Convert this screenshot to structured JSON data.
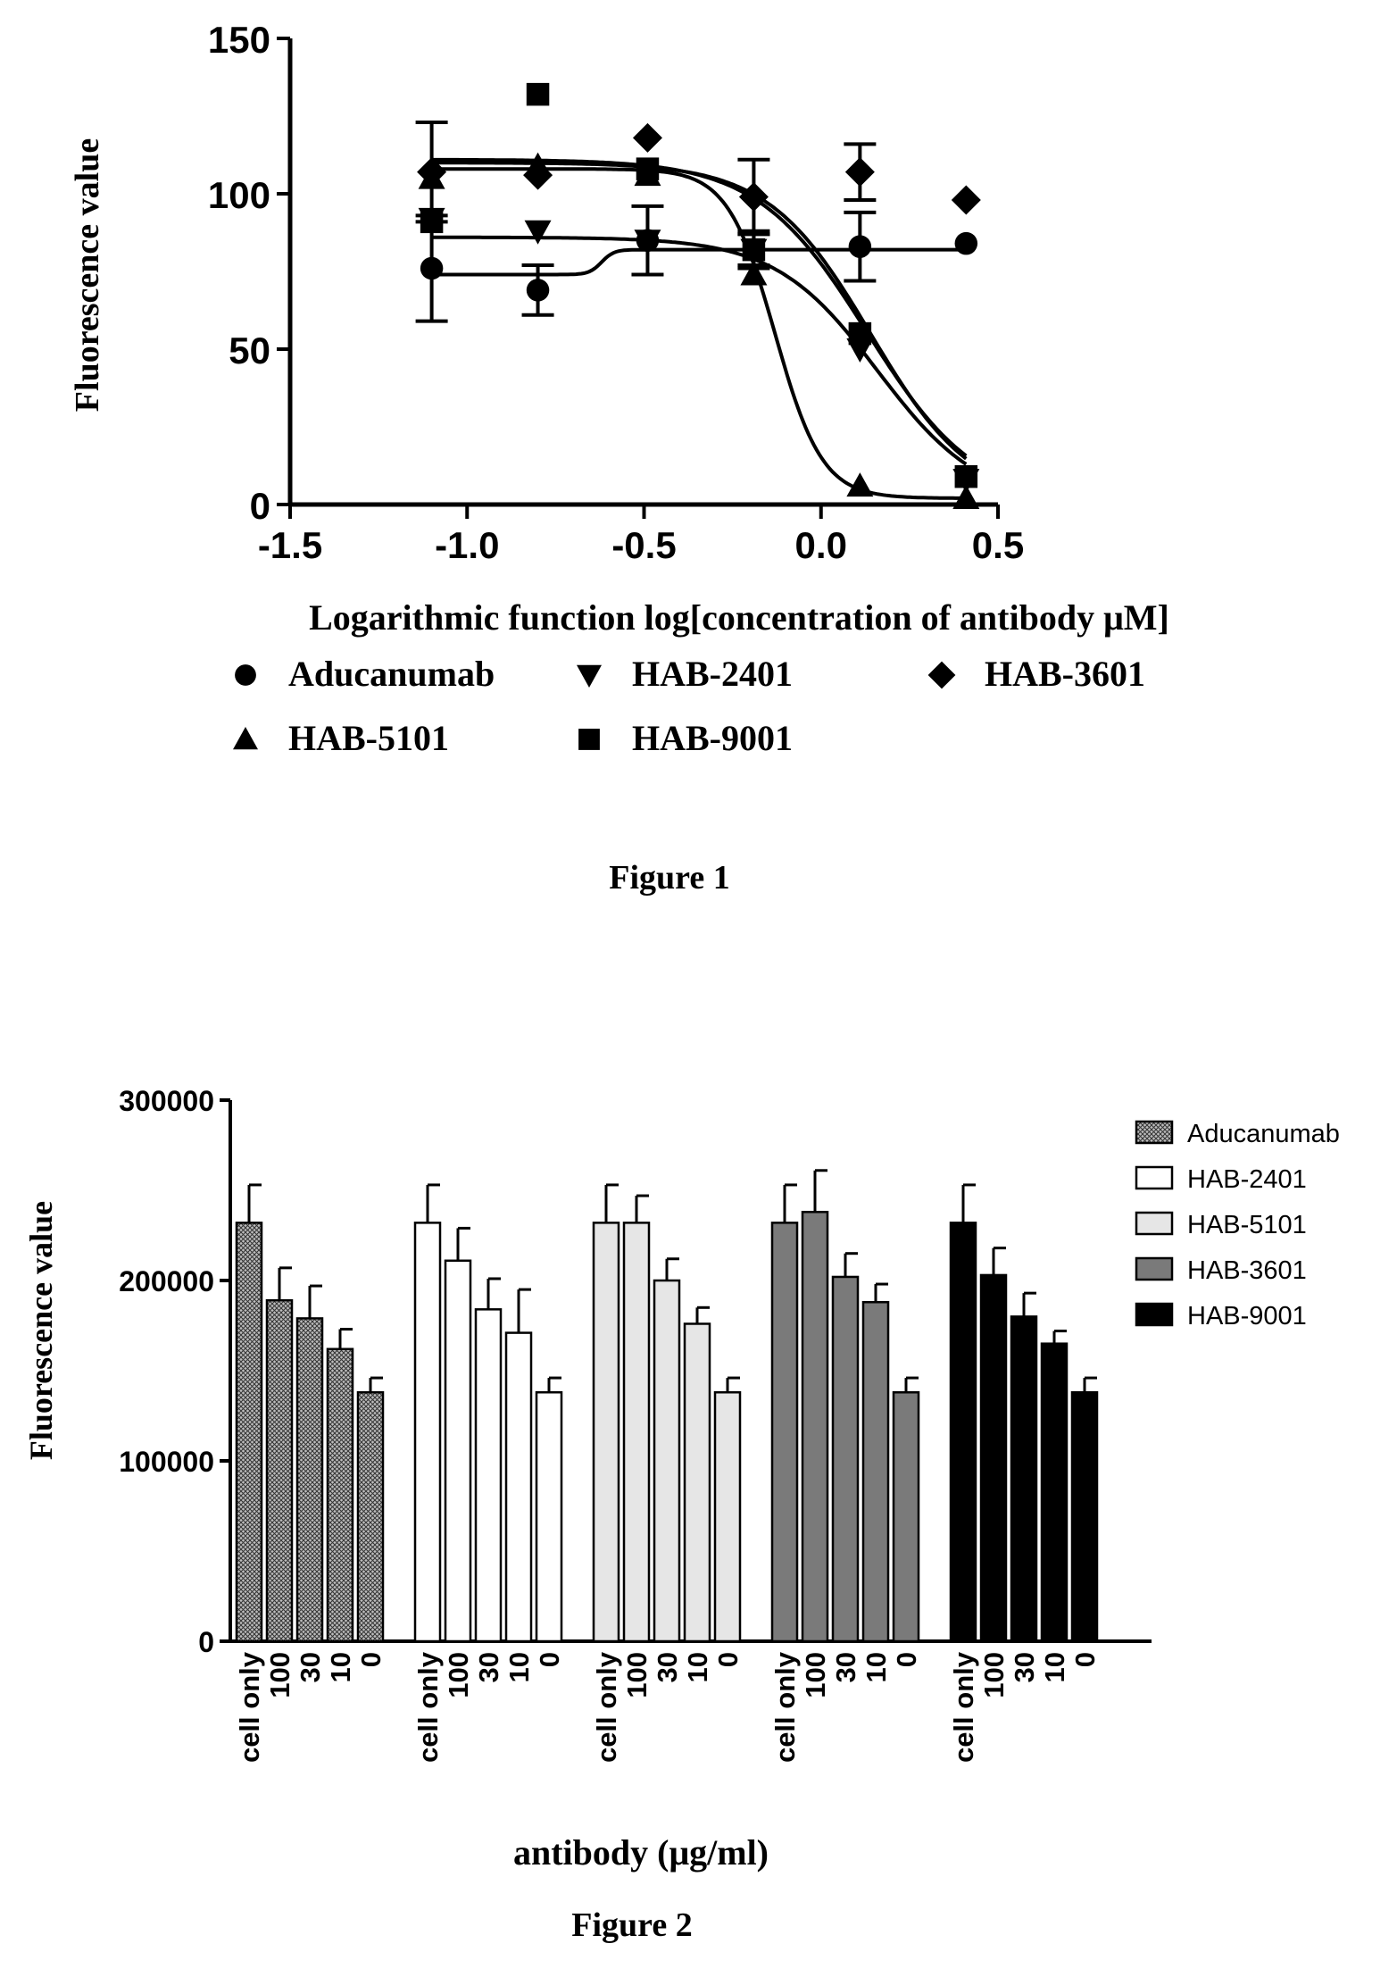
{
  "figure1": {
    "caption": "Figure 1",
    "chart_data": {
      "type": "scatter",
      "xlabel": "Logarithmic function log[concentration of antibody μM]",
      "ylabel": "Fluorescence value",
      "xlim": [
        -1.5,
        0.5
      ],
      "ylim": [
        0,
        150
      ],
      "xticks": [
        "-1.5",
        "-1.0",
        "-0.5",
        "0.0",
        "0.5"
      ],
      "yticks": [
        "0",
        "50",
        "100",
        "150"
      ],
      "legend": "bottom",
      "series": [
        {
          "name": "Aducanumab",
          "marker": "circle",
          "points": [
            [
              -1.1,
              76
            ],
            [
              -0.8,
              69
            ],
            [
              -0.49,
              85
            ],
            [
              -0.19,
              82
            ],
            [
              0.11,
              83
            ],
            [
              0.41,
              84
            ]
          ],
          "err": [
            17,
            8,
            11,
            6,
            11,
            0
          ],
          "fit": {
            "top": 74,
            "bottom": 82,
            "logEC50": -0.62,
            "hill": 25
          }
        },
        {
          "name": "HAB-2401",
          "marker": "triangle-down",
          "points": [
            [
              -1.1,
              92
            ],
            [
              -0.8,
              88
            ],
            [
              -0.49,
              85
            ],
            [
              -0.19,
              82
            ],
            [
              0.11,
              50
            ],
            [
              0.41,
              8
            ]
          ],
          "err": [
            0,
            0,
            0,
            5,
            0,
            0
          ],
          "fit": {
            "top": 86,
            "bottom": 0,
            "logEC50": 0.16,
            "hill": 3
          }
        },
        {
          "name": "HAB-3601",
          "marker": "diamond",
          "points": [
            [
              -1.1,
              107
            ],
            [
              -0.8,
              106
            ],
            [
              -0.49,
              118
            ],
            [
              -0.19,
              99
            ],
            [
              0.11,
              107
            ],
            [
              0.41,
              98
            ]
          ],
          "err": [
            16,
            0,
            0,
            12,
            9,
            0
          ],
          "fit": {
            "top": 111,
            "bottom": 0,
            "logEC50": 0.13,
            "hill": 2.8
          }
        },
        {
          "name": "HAB-5101",
          "marker": "triangle-up",
          "points": [
            [
              -1.1,
              105
            ],
            [
              -0.8,
              109
            ],
            [
              -0.49,
              106
            ],
            [
              -0.19,
              74
            ],
            [
              0.11,
              6
            ],
            [
              0.41,
              2
            ]
          ],
          "err": [
            0,
            0,
            0,
            0,
            0,
            0
          ],
          "fit": {
            "top": 108,
            "bottom": 2,
            "logEC50": -0.13,
            "hill": 6.5
          }
        },
        {
          "name": "HAB-9001",
          "marker": "square",
          "points": [
            [
              -1.1,
              91
            ],
            [
              -0.8,
              132
            ],
            [
              -0.49,
              108
            ],
            [
              -0.19,
              82
            ],
            [
              0.11,
              55
            ],
            [
              0.41,
              9
            ]
          ],
          "err": [
            0,
            0,
            0,
            0,
            0,
            0
          ],
          "fit": {
            "top": 110,
            "bottom": 0,
            "logEC50": 0.14,
            "hill": 3
          }
        }
      ]
    }
  },
  "figure2": {
    "caption": "Figure 2",
    "chart_data": {
      "type": "bar",
      "xlabel": "antibody (μg/ml)",
      "ylabel": "Fluorescence value",
      "ylim": [
        0,
        300000
      ],
      "yticks": [
        "0",
        "100000",
        "200000",
        "300000"
      ],
      "categories": [
        "cell only",
        "100",
        "30",
        "10",
        "0"
      ],
      "legend": "top-right",
      "series": [
        {
          "name": "Aducanumab",
          "fill": "pattern-crosshatch",
          "values": [
            232000,
            189000,
            179000,
            162000,
            138000
          ],
          "err": [
            21000,
            18000,
            18000,
            11000,
            8000
          ]
        },
        {
          "name": "HAB-2401",
          "fill": "#ffffff",
          "values": [
            232000,
            211000,
            184000,
            171000,
            138000
          ],
          "err": [
            21000,
            18000,
            17000,
            24000,
            8000
          ]
        },
        {
          "name": "HAB-5101",
          "fill": "#e6e6e6",
          "values": [
            232000,
            232000,
            200000,
            176000,
            138000
          ],
          "err": [
            21000,
            15000,
            12000,
            9000,
            8000
          ]
        },
        {
          "name": "HAB-3601",
          "fill": "#7a7a7a",
          "values": [
            232000,
            238000,
            202000,
            188000,
            138000
          ],
          "err": [
            21000,
            23000,
            13000,
            10000,
            8000
          ]
        },
        {
          "name": "HAB-9001",
          "fill": "#000000",
          "values": [
            232000,
            203000,
            180000,
            165000,
            138000
          ],
          "err": [
            21000,
            15000,
            13000,
            7000,
            8000
          ]
        }
      ]
    }
  }
}
